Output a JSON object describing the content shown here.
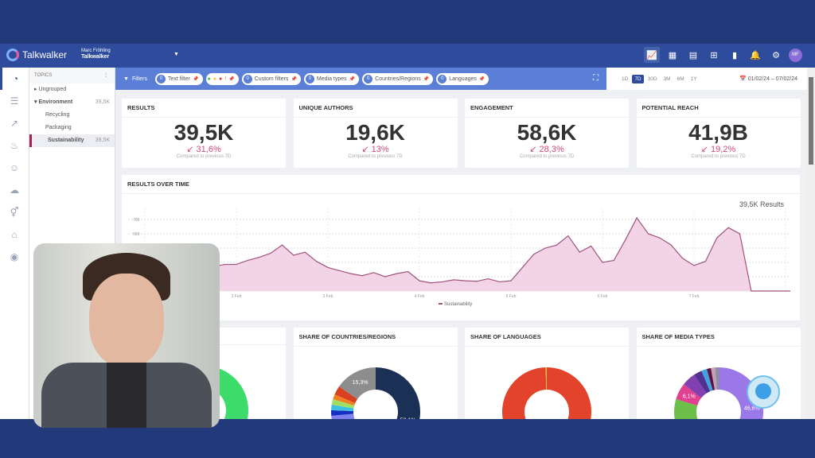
{
  "header": {
    "brand": "Talkwalker",
    "user_name": "Marc Fröhling",
    "workspace": "Talkwalker",
    "avatar_initials": "MF"
  },
  "rail_icons": [
    "dashboard-icon",
    "feed-icon",
    "trend-icon",
    "influencer-icon",
    "emoji-icon",
    "cloud-icon",
    "gender-icon",
    "map-icon",
    "eye-icon"
  ],
  "topics": {
    "header": "TOPICS",
    "items": [
      {
        "label": "Ungrouped",
        "count": ""
      },
      {
        "label": "Environment",
        "count": "39,5K"
      },
      {
        "label": "Recycling",
        "count": ""
      },
      {
        "label": "Packaging",
        "count": ""
      },
      {
        "label": "Sustainability",
        "count": "39,5K"
      }
    ]
  },
  "filters": {
    "label": "Filters",
    "chips": [
      {
        "count": "0",
        "label": "Text filter"
      },
      {
        "count": "0",
        "label": "Custom filters"
      },
      {
        "count": "0",
        "label": "Media types"
      },
      {
        "count": "0",
        "label": "Countries/Regions"
      },
      {
        "count": "0",
        "label": "Languages"
      }
    ]
  },
  "periods": [
    "1D",
    "7D",
    "30D",
    "3M",
    "6M",
    "1Y"
  ],
  "active_period": "7D",
  "date_range": "01/02/24 – 07/02/24",
  "kpis": [
    {
      "title": "RESULTS",
      "value": "39,5K",
      "delta": "31,6%",
      "compare": "Compared to previous 7D"
    },
    {
      "title": "UNIQUE AUTHORS",
      "value": "19,6K",
      "delta": "13%",
      "compare": "Compared to previous 7D"
    },
    {
      "title": "ENGAGEMENT",
      "value": "58,6K",
      "delta": "28,3%",
      "compare": "Compared to previous 7D"
    },
    {
      "title": "POTENTIAL REACH",
      "value": "41,9B",
      "delta": "19,2%",
      "compare": "Compared to previous 7D"
    }
  ],
  "chart_data": {
    "type": "area",
    "title": "RESULTS OVER TIME",
    "total_label": "39,5K Results",
    "legend": [
      "Sustainability"
    ],
    "color": "#a0547f",
    "fill": "#f3d3e6",
    "yticks": [
      560,
      700
    ],
    "ylim": [
      0,
      800
    ],
    "xticks": [
      "2 Feb",
      "3 Feb",
      "4 Feb",
      "5 Feb",
      "6 Feb",
      "7 Feb"
    ],
    "x": [
      "2024-02-01T00",
      "2024-02-01T03",
      "2024-02-01T06",
      "2024-02-01T09",
      "2024-02-01T12",
      "2024-02-01T15",
      "2024-02-01T18",
      "2024-02-01T21",
      "2024-02-02T00",
      "2024-02-02T03",
      "2024-02-02T06",
      "2024-02-02T09",
      "2024-02-02T12",
      "2024-02-02T15",
      "2024-02-02T18",
      "2024-02-02T21",
      "2024-02-03T00",
      "2024-02-03T03",
      "2024-02-03T06",
      "2024-02-03T09",
      "2024-02-03T12",
      "2024-02-03T15",
      "2024-02-03T18",
      "2024-02-03T21",
      "2024-02-04T00",
      "2024-02-04T03",
      "2024-02-04T06",
      "2024-02-04T09",
      "2024-02-04T12",
      "2024-02-04T15",
      "2024-02-04T18",
      "2024-02-04T21",
      "2024-02-05T00",
      "2024-02-05T03",
      "2024-02-05T06",
      "2024-02-05T09",
      "2024-02-05T12",
      "2024-02-05T15",
      "2024-02-05T18",
      "2024-02-05T21",
      "2024-02-06T00",
      "2024-02-06T03",
      "2024-02-06T06",
      "2024-02-06T09",
      "2024-02-06T12",
      "2024-02-06T15",
      "2024-02-06T18",
      "2024-02-06T21",
      "2024-02-07T00",
      "2024-02-07T03",
      "2024-02-07T06",
      "2024-02-07T09",
      "2024-02-07T12",
      "2024-02-07T15",
      "2024-02-07T18",
      "2024-02-07T21",
      "2024-02-08T00"
    ],
    "values": [
      220,
      230,
      210,
      180,
      230,
      220,
      240,
      260,
      260,
      300,
      330,
      370,
      450,
      350,
      380,
      290,
      230,
      200,
      170,
      150,
      180,
      140,
      170,
      190,
      100,
      80,
      90,
      110,
      100,
      95,
      120,
      90,
      100,
      230,
      360,
      420,
      450,
      540,
      380,
      440,
      280,
      300,
      500,
      715,
      560,
      520,
      450,
      320,
      250,
      290,
      520,
      620,
      560,
      0,
      0,
      0,
      0
    ]
  },
  "donuts": [
    {
      "title": "",
      "slices": [
        {
          "value": 100,
          "color": "#3ddc6a",
          "label": ""
        }
      ]
    },
    {
      "title": "SHARE OF COUNTRIES/REGIONS",
      "slices": [
        {
          "value": 58.1,
          "color": "#1a3055",
          "label": "58,1%"
        },
        {
          "value": 6.5,
          "color": "#b7d44a",
          "label": "6,5%"
        },
        {
          "value": 5,
          "color": "#f5e11e",
          "label": ""
        },
        {
          "value": 4,
          "color": "#8080ee",
          "label": ""
        },
        {
          "value": 2,
          "color": "#1530c0",
          "label": ""
        },
        {
          "value": 2,
          "color": "#40c0e0",
          "label": ""
        },
        {
          "value": 2,
          "color": "#a0e060",
          "label": ""
        },
        {
          "value": 1.8,
          "color": "#f08020",
          "label": ""
        },
        {
          "value": 3.3,
          "color": "#d84020",
          "label": ""
        },
        {
          "value": 15.3,
          "color": "#8d8d8d",
          "label": "15,3%"
        }
      ]
    },
    {
      "title": "SHARE OF LANGUAGES",
      "slices": [
        {
          "value": 99.6,
          "color": "#e2432a",
          "label": ""
        },
        {
          "value": 0.4,
          "color": "#f0c040",
          "label": ""
        }
      ]
    },
    {
      "title": "SHARE OF MEDIA TYPES",
      "slices": [
        {
          "value": 46.6,
          "color": "#9a78e8",
          "label": "46,6%"
        },
        {
          "value": 33,
          "color": "#6cc04a",
          "label": ""
        },
        {
          "value": 6.1,
          "color": "#e04090",
          "label": "6,1%"
        },
        {
          "value": 5,
          "color": "#8040b0",
          "label": ""
        },
        {
          "value": 3,
          "color": "#503090",
          "label": ""
        },
        {
          "value": 2,
          "color": "#40a0e0",
          "label": ""
        },
        {
          "value": 1.5,
          "color": "#601040",
          "label": ""
        },
        {
          "value": 1.5,
          "color": "#c0a0c0",
          "label": ""
        },
        {
          "value": 1.3,
          "color": "#909090",
          "label": ""
        }
      ]
    }
  ]
}
